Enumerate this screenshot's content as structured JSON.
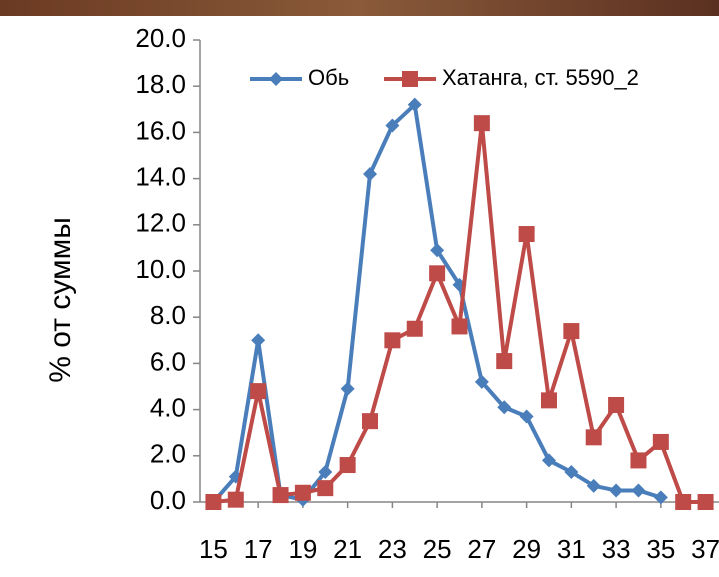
{
  "chart_data": {
    "type": "line",
    "y_label": "% от суммы",
    "x": [
      15,
      16,
      17,
      18,
      19,
      20,
      21,
      22,
      23,
      24,
      25,
      26,
      27,
      28,
      29,
      30,
      31,
      32,
      33,
      34,
      35,
      36,
      37
    ],
    "series": [
      {
        "name": "Обь",
        "color": "#4a7ebb",
        "marker": "diamond",
        "values": [
          0.0,
          1.1,
          7.0,
          0.3,
          0.1,
          1.3,
          4.9,
          14.2,
          16.3,
          17.2,
          10.9,
          9.4,
          5.2,
          4.1,
          3.7,
          1.8,
          1.3,
          0.7,
          0.5,
          0.5,
          0.2,
          null,
          null
        ]
      },
      {
        "name": "Хатанга, ст. 5590_2",
        "color": "#be4b48",
        "marker": "square",
        "values": [
          0.0,
          0.1,
          4.8,
          0.3,
          0.4,
          0.6,
          1.6,
          3.5,
          7.0,
          7.5,
          9.9,
          7.6,
          16.4,
          6.1,
          11.6,
          4.4,
          7.4,
          2.8,
          4.2,
          1.8,
          2.6,
          0.0,
          0.0
        ]
      }
    ],
    "xlim": [
      14.4,
      37.6
    ],
    "xticks": [
      15,
      17,
      19,
      21,
      23,
      25,
      27,
      29,
      31,
      33,
      35,
      37
    ],
    "ylim": [
      0,
      20
    ],
    "yticks": [
      {
        "value": 0,
        "label": "0.0"
      },
      {
        "value": 2,
        "label": "2.0"
      },
      {
        "value": 4,
        "label": "4.0"
      },
      {
        "value": 6,
        "label": "6.0"
      },
      {
        "value": 8,
        "label": "8.0"
      },
      {
        "value": 10,
        "label": "10.0"
      },
      {
        "value": 12,
        "label": "12.0"
      },
      {
        "value": 14,
        "label": "14.0"
      },
      {
        "value": 16,
        "label": "16.0"
      },
      {
        "value": 18,
        "label": "18.0"
      },
      {
        "value": 20,
        "label": "20.0"
      }
    ],
    "grid": false,
    "legend": "top"
  }
}
